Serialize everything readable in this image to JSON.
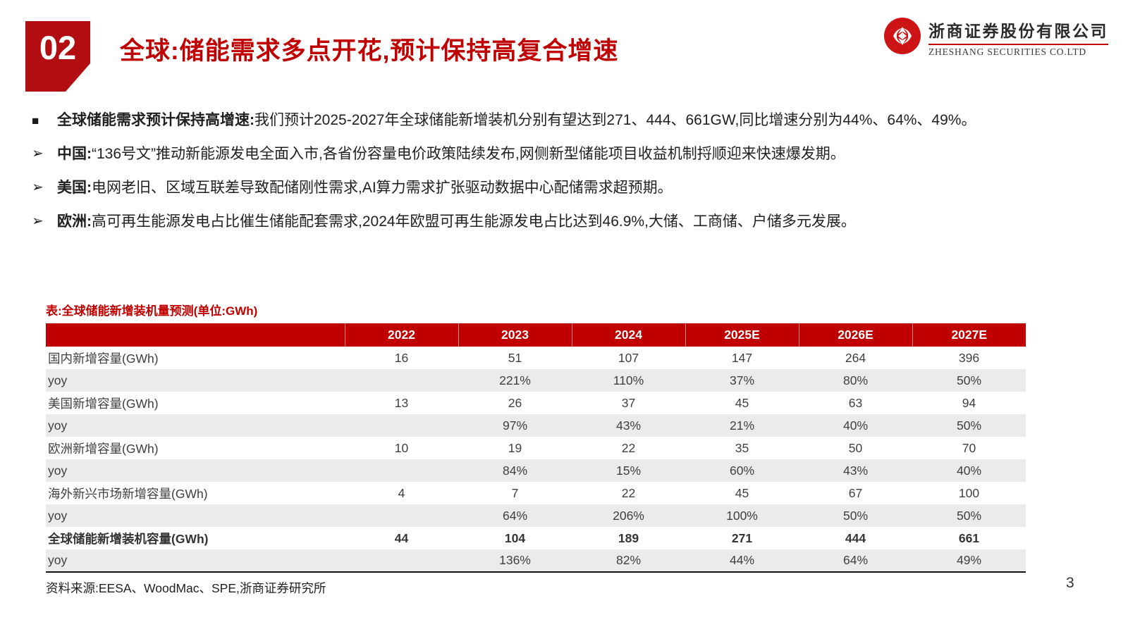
{
  "page": {
    "badge": "02",
    "title": "全球:储能需求多点开花,预计保持高复合增速",
    "page_number": "3"
  },
  "logo": {
    "company_cn": "浙商证券股份有限公司",
    "company_en": "ZHESHANG SECURITIES CO.LTD",
    "brand_red": "#cc1417"
  },
  "bullets": [
    {
      "marker": "■",
      "lead": "全球储能需求预计保持高增速:",
      "text": "我们预计2025-2027年全球储能新增装机分别有望达到271、444、661GW,同比增速分别为44%、64%、49%。"
    },
    {
      "marker": "➢",
      "lead": "中国:",
      "text": "“136号文”推动新能源发电全面入市,各省份容量电价政策陆续发布,网侧新型储能项目收益机制捋顺迎来快速爆发期。"
    },
    {
      "marker": "➢",
      "lead": "美国:",
      "text": "电网老旧、区域互联差导致配储刚性需求,AI算力需求扩张驱动数据中心配储需求超预期。"
    },
    {
      "marker": "➢",
      "lead": "欧洲:",
      "text": "高可再生能源发电占比催生储能配套需求,2024年欧盟可再生能源发电占比达到46.9%,大储、工商储、户储多元发展。"
    }
  ],
  "table": {
    "caption": "表:全球储能新增装机量预测(单位:GWh)",
    "columns": [
      "",
      "2022",
      "2023",
      "2024",
      "2025E",
      "2026E",
      "2027E"
    ],
    "rows": [
      {
        "label": "国内新增容量(GWh)",
        "values": [
          "16",
          "51",
          "107",
          "147",
          "264",
          "396"
        ],
        "bold": false,
        "shaded": false
      },
      {
        "label": "yoy",
        "values": [
          "",
          "221%",
          "110%",
          "37%",
          "80%",
          "50%"
        ],
        "bold": false,
        "shaded": true
      },
      {
        "label": "美国新增容量(GWh)",
        "values": [
          "13",
          "26",
          "37",
          "45",
          "63",
          "94"
        ],
        "bold": false,
        "shaded": false
      },
      {
        "label": "yoy",
        "values": [
          "",
          "97%",
          "43%",
          "21%",
          "40%",
          "50%"
        ],
        "bold": false,
        "shaded": true
      },
      {
        "label": "欧洲新增容量(GWh)",
        "values": [
          "10",
          "19",
          "22",
          "35",
          "50",
          "70"
        ],
        "bold": false,
        "shaded": false
      },
      {
        "label": "yoy",
        "values": [
          "",
          "84%",
          "15%",
          "60%",
          "43%",
          "40%"
        ],
        "bold": false,
        "shaded": true
      },
      {
        "label": "海外新兴市场新增容量(GWh)",
        "values": [
          "4",
          "7",
          "22",
          "45",
          "67",
          "100"
        ],
        "bold": false,
        "shaded": false
      },
      {
        "label": "yoy",
        "values": [
          "",
          "64%",
          "206%",
          "100%",
          "50%",
          "50%"
        ],
        "bold": false,
        "shaded": true
      },
      {
        "label": "全球储能新增装机容量(GWh)",
        "values": [
          "44",
          "104",
          "189",
          "271",
          "444",
          "661"
        ],
        "bold": true,
        "shaded": false
      },
      {
        "label": "yoy",
        "values": [
          "",
          "136%",
          "82%",
          "44%",
          "64%",
          "49%"
        ],
        "bold": false,
        "shaded": true
      }
    ]
  },
  "footer": {
    "source": "资料来源:EESA、WoodMac、SPE,浙商证券研究所"
  },
  "colors": {
    "accent_red": "#c00000",
    "badge_red": "#b20d10",
    "stripe_gray": "#ebebeb",
    "header_text": "#ffffff"
  }
}
